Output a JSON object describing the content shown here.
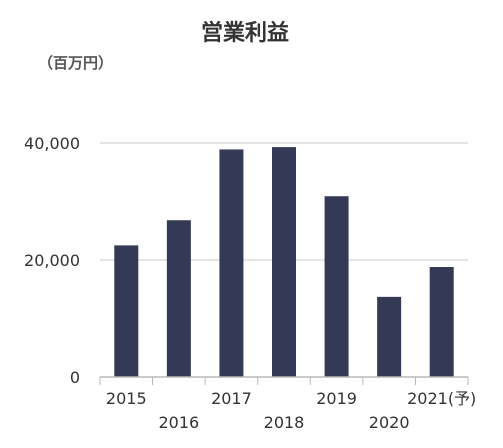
{
  "chart_data": {
    "type": "bar",
    "title": "営業利益",
    "unit_label": "（百万円）",
    "categories": [
      "2015",
      "2016",
      "2017",
      "2018",
      "2019",
      "2020",
      "2021(予)"
    ],
    "values": [
      22500,
      26800,
      38900,
      39300,
      30900,
      13700,
      18800
    ],
    "y_ticks": [
      "0",
      "20,000",
      "40,000"
    ],
    "ylim": [
      0,
      40000
    ],
    "grid": true,
    "bar_color": "#343a55",
    "grid_color": "#c8c8c8",
    "axis_color": "#b8b8b8",
    "text_color": "#333333"
  }
}
